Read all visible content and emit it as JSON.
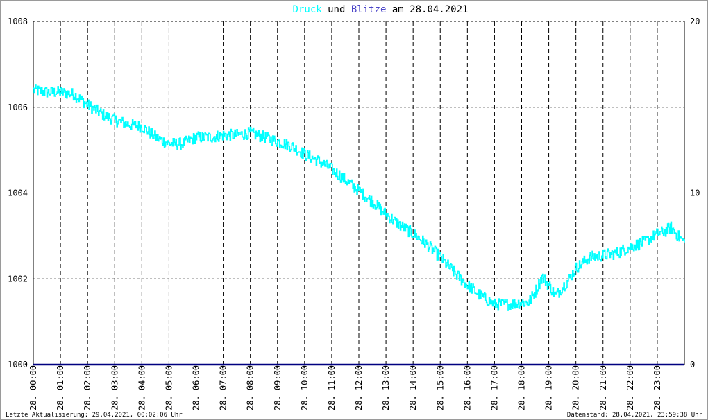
{
  "title": {
    "part1": "Druck",
    "part2": " und ",
    "part3": "Blitze",
    "part4": " am 28.04.2021"
  },
  "colors": {
    "druck": "#00ffff",
    "blitze": "#4b45c8",
    "blitze_line": "#000080",
    "grid": "#000000"
  },
  "footer": {
    "left": "Letzte Aktualisierung: 29.04.2021, 00:02:06 Uhr",
    "right": "Datenstand: 28.04.2021, 23:59:38 Uhr"
  },
  "chart_data": {
    "type": "line",
    "title": "Druck und Blitze am 28.04.2021",
    "y_left": {
      "min": 1000,
      "max": 1008,
      "ticks": [
        "1000",
        "1002",
        "1004",
        "1006",
        "1008"
      ]
    },
    "y_right": {
      "min": 0,
      "max": 20,
      "ticks": [
        "0",
        "10",
        "20"
      ]
    },
    "x_range_hours": [
      0,
      24
    ],
    "x_ticks": [
      "28. 00:00",
      "28. 01:00",
      "28. 02:00",
      "28. 03:00",
      "28. 04:00",
      "28. 05:00",
      "28. 06:00",
      "28. 07:00",
      "28. 08:00",
      "28. 09:00",
      "28. 10:00",
      "28. 11:00",
      "28. 12:00",
      "28. 13:00",
      "28. 14:00",
      "28. 15:00",
      "28. 16:00",
      "28. 17:00",
      "28. 18:00",
      "28. 19:00",
      "28. 20:00",
      "28. 21:00",
      "28. 22:00",
      "28. 23:00"
    ],
    "grid": true,
    "series": [
      {
        "name": "Druck",
        "axis": "left",
        "x_hours": [
          0,
          0.5,
          1,
          1.5,
          2,
          2.5,
          3,
          3.5,
          4,
          4.5,
          5,
          5.5,
          6,
          6.5,
          7,
          7.5,
          8,
          8.5,
          9,
          9.5,
          10,
          10.5,
          11,
          11.5,
          12,
          12.5,
          13,
          13.5,
          14,
          14.5,
          15,
          15.5,
          16,
          16.5,
          17,
          17.5,
          18,
          18.25,
          18.5,
          18.75,
          19,
          19.25,
          19.5,
          19.75,
          20,
          20.5,
          21,
          21.5,
          22,
          22.5,
          23,
          23.25,
          23.5,
          23.75,
          24
        ],
        "values": [
          1006.4,
          1006.35,
          1006.35,
          1006.3,
          1006.05,
          1005.85,
          1005.7,
          1005.6,
          1005.55,
          1005.3,
          1005.15,
          1005.15,
          1005.3,
          1005.3,
          1005.35,
          1005.35,
          1005.4,
          1005.3,
          1005.2,
          1005.1,
          1004.9,
          1004.75,
          1004.55,
          1004.3,
          1004.05,
          1003.8,
          1003.5,
          1003.25,
          1003.05,
          1002.8,
          1002.5,
          1002.15,
          1001.85,
          1001.6,
          1001.4,
          1001.4,
          1001.45,
          1001.45,
          1001.7,
          1002.05,
          1001.85,
          1001.6,
          1001.8,
          1002.0,
          1002.25,
          1002.5,
          1002.55,
          1002.6,
          1002.75,
          1002.85,
          1003.05,
          1003.1,
          1003.2,
          1003.0,
          1002.85
        ]
      },
      {
        "name": "Blitze",
        "axis": "right",
        "x_hours": [
          0,
          24
        ],
        "values": [
          0,
          0
        ]
      }
    ]
  }
}
